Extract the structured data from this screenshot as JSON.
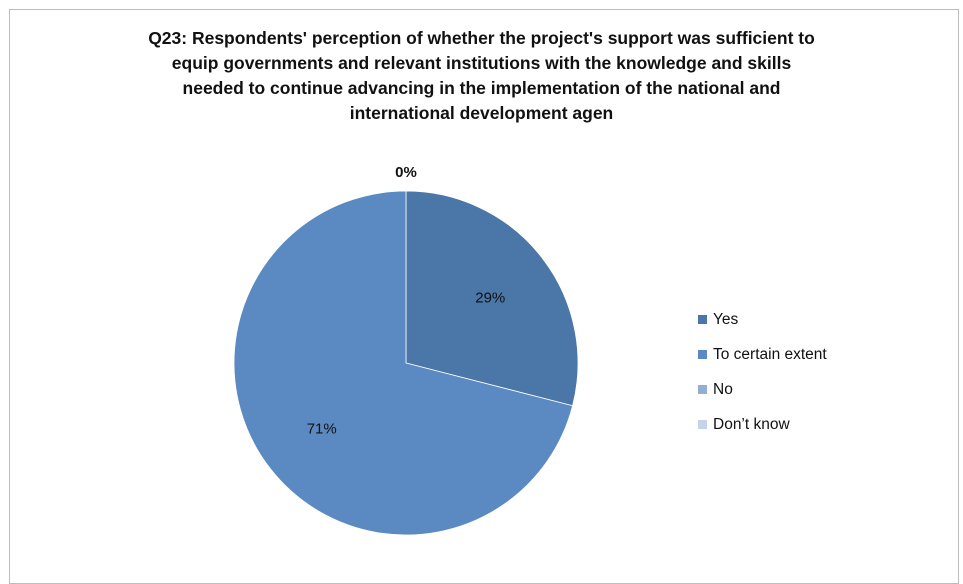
{
  "chart_data": {
    "type": "pie",
    "title_lines": [
      "Q23: Respondents' perception of whether the project's support was sufficient to",
      "equip governments and relevant institutions with the knowledge and skills",
      "needed to continue advancing in the implementation of the national and",
      "international development agen"
    ],
    "legend_position": "right",
    "slices": [
      {
        "label": "Yes",
        "value": 29,
        "value_label": "29%",
        "color": "#4a76a8"
      },
      {
        "label": "To certain extent",
        "value": 71,
        "value_label": "71%",
        "color": "#5b8ac2"
      },
      {
        "label": "No",
        "value": 0,
        "value_label": "0%",
        "color": "#93aed5"
      },
      {
        "label": "Don’t know",
        "value": 0,
        "value_label": "",
        "color": "#c6d4e9"
      }
    ]
  }
}
